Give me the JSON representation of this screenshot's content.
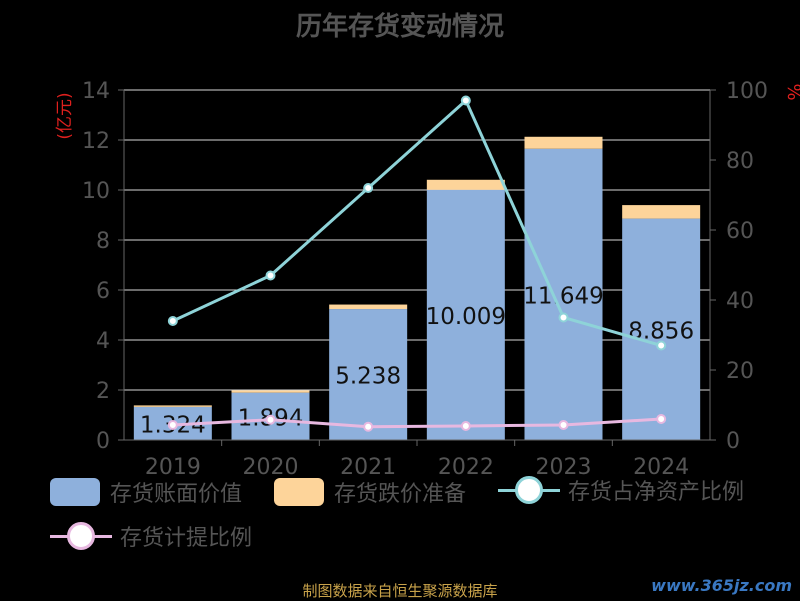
{
  "title": "历年存货变动情况",
  "source": "制图数据来自恒生聚源数据库",
  "watermark": "www.365jz.com",
  "colors": {
    "bar_book": "#8eb0dc",
    "bar_reserve": "#fdd49a",
    "line_ratio": "#8ed3d8",
    "line_provision": "#e7b8e0",
    "axis_unit": "#e0201e",
    "grid": "#d9d9d9",
    "text": "#555555"
  },
  "chart_data": {
    "type": "bar",
    "categories": [
      "2019",
      "2020",
      "2021",
      "2022",
      "2023",
      "2024"
    ],
    "left_axis": {
      "label": "(亿元)",
      "min": 0,
      "max": 14,
      "ticks": [
        "0",
        "2",
        "4",
        "6",
        "8",
        "10",
        "12",
        "14"
      ]
    },
    "right_axis": {
      "label": "%",
      "min": 0,
      "max": 100,
      "ticks": [
        "0",
        "20",
        "40",
        "60",
        "80",
        "100"
      ]
    },
    "series": [
      {
        "name": "存货账面价值",
        "kind": "bar-stack",
        "axis": "left",
        "values": [
          1.324,
          1.894,
          5.238,
          10.009,
          11.649,
          8.856
        ],
        "labels": [
          "1.324",
          "1.894",
          "5.238",
          "10.009",
          "11.649",
          "8.856"
        ]
      },
      {
        "name": "存货跌价准备",
        "kind": "bar-stack",
        "axis": "left",
        "values": [
          0.06,
          0.09,
          0.18,
          0.4,
          0.48,
          0.54
        ]
      },
      {
        "name": "存货占净资产比例",
        "kind": "line",
        "axis": "right",
        "values": [
          34,
          47,
          72,
          97,
          35,
          27
        ]
      },
      {
        "name": "存货计提比例",
        "kind": "line",
        "axis": "right",
        "values": [
          4.3,
          5.8,
          3.8,
          4.0,
          4.3,
          6.0
        ]
      }
    ],
    "grid": true,
    "legend_position": "bottom"
  }
}
